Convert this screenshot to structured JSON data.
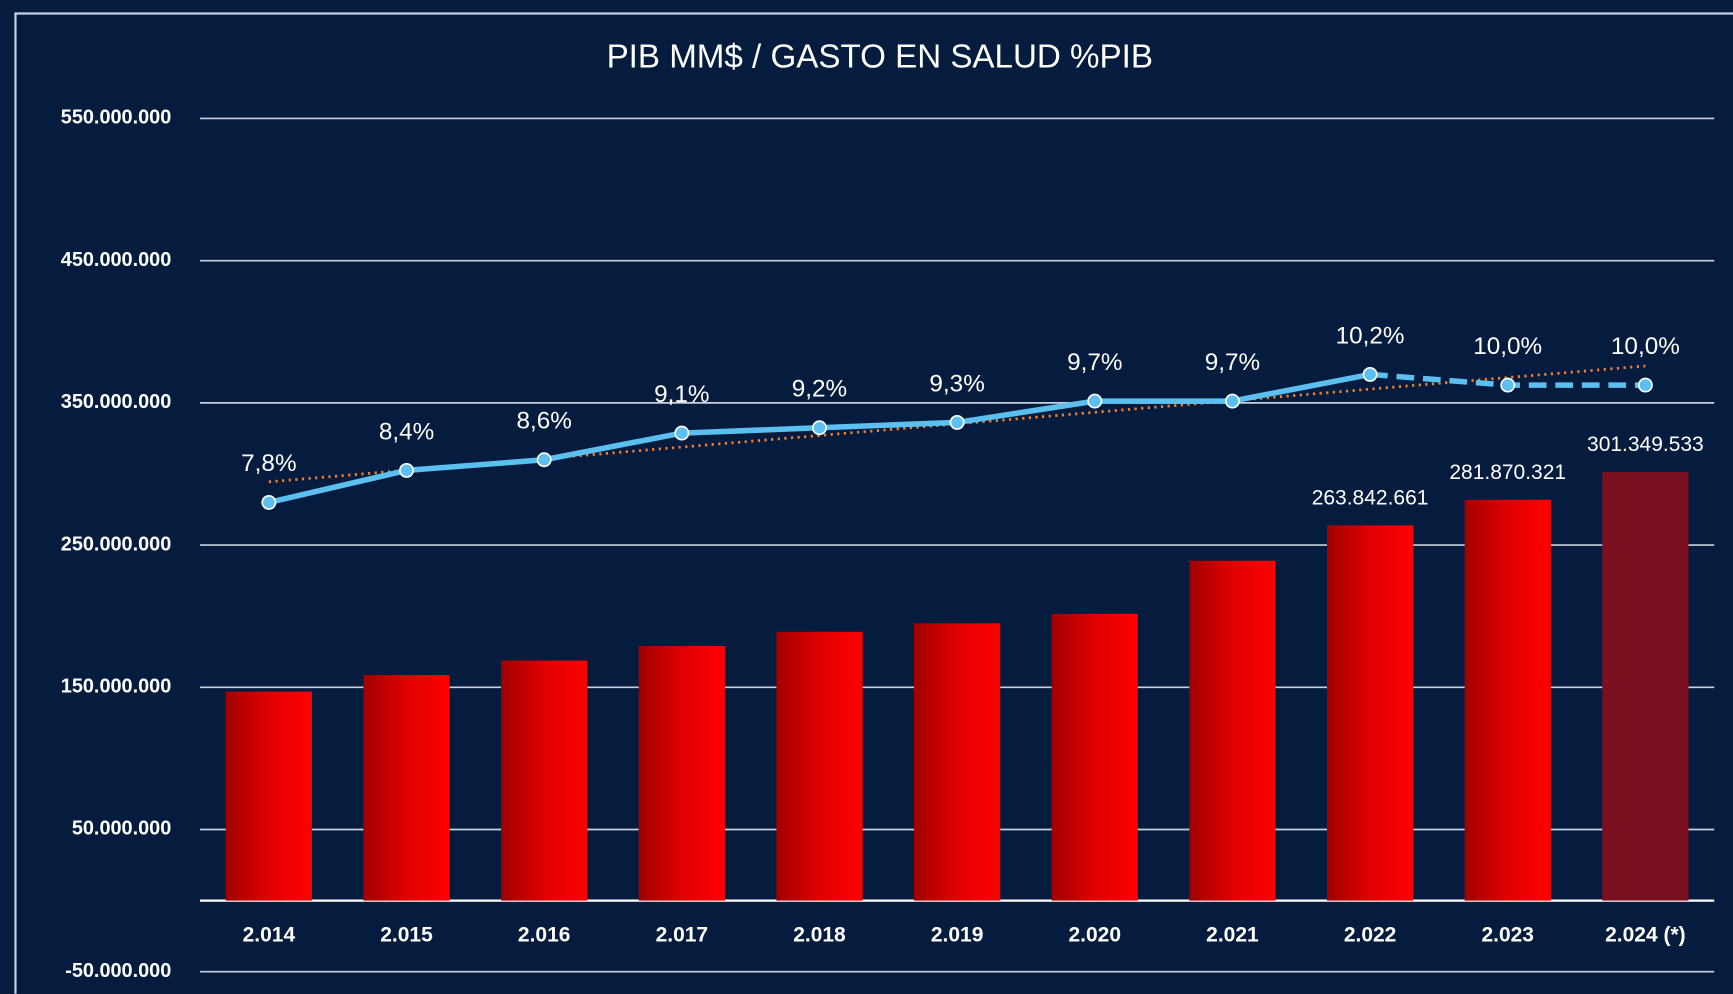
{
  "chart_data": {
    "type": "bar_line",
    "title": "PIB MM$ / GASTO EN SALUD %PIB",
    "categories": [
      "2.014",
      "2.015",
      "2.016",
      "2.017",
      "2.018",
      "2.019",
      "2.020",
      "2.021",
      "2.022",
      "2.023",
      "2.024 (*)"
    ],
    "ylim": [
      -50000000,
      550000000
    ],
    "yticks": [
      {
        "value": -50000000,
        "label": "-50.000.000"
      },
      {
        "value": 50000000,
        "label": "50.000.000"
      },
      {
        "value": 150000000,
        "label": "150.000.000"
      },
      {
        "value": 250000000,
        "label": "250.000.000"
      },
      {
        "value": 350000000,
        "label": "350.000.000"
      },
      {
        "value": 450000000,
        "label": "450.000.000"
      },
      {
        "value": 550000000,
        "label": "550.000.000"
      }
    ],
    "y2lim": [
      -1,
      15
    ],
    "grid": true,
    "series": [
      {
        "type": "bar",
        "colors": [
          "#e00000",
          "#e00000",
          "#e00000",
          "#e00000",
          "#e00000",
          "#e00000",
          "#e00000",
          "#e00000",
          "#e00000",
          "#e00000",
          "#7a1020"
        ],
        "values": [
          147000000,
          158600000,
          168800000,
          179000000,
          189000000,
          195000000,
          201600000,
          239000000,
          263842661,
          281870321,
          301349533
        ],
        "value_labels": [
          null,
          null,
          null,
          null,
          null,
          null,
          null,
          null,
          "263.842.661",
          "281.870.321",
          "301.349.533"
        ]
      },
      {
        "type": "line",
        "axis": "y2",
        "color": "#5bc0f0",
        "dashed_from": 8,
        "trendline": true,
        "trend_color": "#f08030",
        "values": [
          7.8,
          8.4,
          8.6,
          9.1,
          9.2,
          9.3,
          9.7,
          9.7,
          10.2,
          10.0,
          10.0
        ],
        "value_labels": [
          "7,8%",
          "8,4%",
          "8,6%",
          "9,1%",
          "9,2%",
          "9,3%",
          "9,7%",
          "9,7%",
          "10,2%",
          "10,0%",
          "10,0%"
        ]
      }
    ]
  }
}
